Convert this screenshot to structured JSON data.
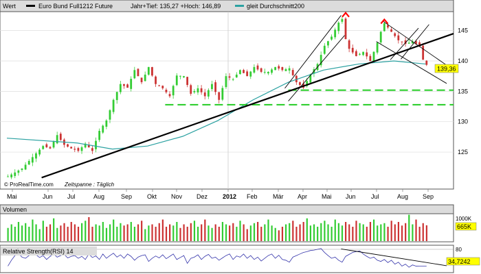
{
  "chart_data": [
    {
      "type": "candlestick",
      "panel_label": "Wert",
      "title": "Euro Bund Full1212 Future",
      "range_text": "Jahr+Tief: 135,27 +Hoch: 146,89",
      "legend_ma": "gleit Durchschnitt200",
      "watermark": "© ProRealTime.com",
      "period_text": "Zeitspanne : Täglich",
      "months": [
        "Mai",
        "Jun",
        "Jul",
        "Aug",
        "Sep",
        "Okt",
        "Nov",
        "Dez",
        "2012",
        "Feb",
        "Mär",
        "Apr",
        "Mai",
        "Jun",
        "Jul",
        "Aug",
        "Sep"
      ],
      "y_ticks": [
        125,
        130,
        135,
        140,
        145
      ],
      "ylim": [
        120.5,
        148
      ],
      "last_price": "139,36",
      "colors": {
        "up": "#33cc33",
        "down": "#cc3333",
        "ma": "#2aa1a1",
        "trend": "#000000",
        "support": "#22cc22",
        "marker": "#ff0000",
        "last_price_bg": "#ffff00"
      },
      "price_path": [
        [
          0,
          121
        ],
        [
          4,
          122.3
        ],
        [
          8,
          124.8
        ],
        [
          10,
          126
        ],
        [
          12,
          125.6
        ],
        [
          14,
          127.8
        ],
        [
          16,
          126.2
        ],
        [
          18,
          125.6
        ],
        [
          20,
          125.2
        ],
        [
          22,
          126.4
        ],
        [
          24,
          125.2
        ],
        [
          26,
          128.5
        ],
        [
          28,
          130.2
        ],
        [
          30,
          133.6
        ],
        [
          32,
          136.2
        ],
        [
          34,
          135.6
        ],
        [
          36,
          138.5
        ],
        [
          38,
          136.5
        ],
        [
          40,
          139
        ],
        [
          42,
          136.2
        ],
        [
          44,
          135.5
        ],
        [
          46,
          134.2
        ],
        [
          48,
          137.6
        ],
        [
          50,
          137.5
        ],
        [
          52,
          134.6
        ],
        [
          54,
          135.5
        ],
        [
          56,
          134.2
        ],
        [
          58,
          136.2
        ],
        [
          60,
          133.6
        ],
        [
          62,
          137.5
        ],
        [
          64,
          137
        ],
        [
          66,
          138.5
        ],
        [
          68,
          137.5
        ],
        [
          70,
          139
        ],
        [
          72,
          138.2
        ],
        [
          74,
          138.2
        ],
        [
          76,
          139
        ],
        [
          78,
          138.5
        ],
        [
          80,
          138.8
        ],
        [
          82,
          136.5
        ],
        [
          84,
          135.6
        ],
        [
          86,
          137.8
        ],
        [
          88,
          139.5
        ],
        [
          90,
          142.5
        ],
        [
          92,
          144
        ],
        [
          94,
          146.3
        ],
        [
          95,
          146.9
        ],
        [
          96,
          143.6
        ],
        [
          97,
          142
        ],
        [
          99,
          140.8
        ],
        [
          101,
          141.5
        ],
        [
          103,
          140
        ],
        [
          105,
          143
        ],
        [
          106,
          144.8
        ],
        [
          107,
          146.2
        ],
        [
          109,
          144.8
        ],
        [
          111,
          143.4
        ],
        [
          113,
          142.8
        ],
        [
          115,
          143.2
        ],
        [
          117,
          142.4
        ],
        [
          118,
          140.2
        ],
        [
          119,
          139.36
        ]
      ],
      "ma_points": [
        [
          0,
          127.3
        ],
        [
          20,
          126.5
        ],
        [
          30,
          125.5
        ],
        [
          40,
          126
        ],
        [
          50,
          127.6
        ],
        [
          60,
          130.2
        ],
        [
          70,
          133.6
        ],
        [
          80,
          136.5
        ],
        [
          90,
          138.5
        ],
        [
          100,
          139.5
        ],
        [
          110,
          140
        ],
        [
          119,
          139.5
        ]
      ],
      "trend_line": [
        [
          5,
          120.8
        ],
        [
          125,
          144.5
        ]
      ],
      "support_lines": [
        {
          "y": 132.8,
          "from": 45,
          "to": 125
        },
        {
          "y": 135.2,
          "from": 80,
          "to": 125
        }
      ],
      "channel_lines": [
        [
          [
            79,
            135.5
          ],
          [
            95,
            147.5
          ]
        ],
        [
          [
            80,
            133.4
          ],
          [
            96,
            144.2
          ]
        ],
        [
          [
            105,
            143.2
          ],
          [
            125,
            136.3
          ]
        ],
        [
          [
            107,
            146.5
          ],
          [
            125,
            139.3
          ]
        ],
        [
          [
            109,
            140.2
          ],
          [
            117,
            145.4
          ]
        ],
        [
          [
            112,
            140.3
          ],
          [
            120,
            146
          ]
        ]
      ],
      "markers": [
        [
          96,
          147.7
        ],
        [
          107,
          146.6
        ]
      ]
    },
    {
      "type": "bar",
      "panel_label": "Volumen",
      "y_tick_label": "1000K",
      "last_value": "665K",
      "values": [
        0.55,
        0.7,
        0.6,
        0.8,
        0.65,
        0.75,
        0.6,
        0.9,
        0.7,
        0.5,
        0.85,
        0.6,
        0.7,
        0.95,
        0.55,
        0.65,
        0.75,
        0.6,
        0.8,
        0.7,
        0.6,
        0.75,
        0.85,
        1.0,
        0.6,
        0.7,
        0.65,
        0.8,
        0.55,
        0.7,
        0.9,
        0.6,
        0.75,
        0.65,
        0.7,
        0.8,
        0.6,
        0.7,
        0.85,
        0.5,
        0.65,
        0.7,
        0.6,
        0.75,
        0.9,
        0.6,
        0.7,
        0.65,
        0.8,
        0.55,
        0.7,
        0.6,
        0.75,
        0.85,
        0.6,
        0.7,
        0.9,
        0.65,
        0.55,
        0.7,
        0.6,
        0.8,
        0.7,
        0.65,
        0.75,
        0.6,
        0.85,
        0.7,
        0.5,
        0.65,
        0.75,
        0.8,
        0.6,
        0.7,
        0.9,
        0.65,
        0.55,
        0.45,
        0.6,
        0.7,
        0.75,
        0.85,
        0.6,
        0.7,
        0.8,
        0.95,
        0.65,
        0.7,
        0.6,
        0.75,
        0.85,
        0.7,
        0.6,
        0.9,
        0.75,
        0.65,
        0.8,
        0.7,
        0.6,
        0.85,
        0.75,
        0.7,
        0.6,
        0.8,
        0.9,
        0.65,
        0.7,
        0.75,
        0.6,
        0.85,
        0.7,
        0.8,
        0.65,
        0.75,
        1.1,
        0.7,
        0.9,
        0.6,
        0.75,
        0.66
      ]
    },
    {
      "type": "line",
      "panel_label": "Relative Strength(RSI) 14",
      "y_tick_label": "80",
      "last_value": "34,7242",
      "ylim": [
        20,
        85
      ],
      "line_color": "#3333aa",
      "values": [
        35,
        50,
        62,
        68,
        58,
        55,
        62,
        70,
        64,
        57,
        62,
        52,
        60,
        66,
        58,
        62,
        65,
        56,
        60,
        62,
        55,
        60,
        52,
        66,
        57,
        61,
        52,
        66,
        55,
        62,
        68,
        58,
        64,
        55,
        66,
        60,
        50,
        58,
        62,
        64,
        47,
        55,
        61,
        56,
        64,
        54,
        60,
        66,
        52,
        57,
        62,
        42,
        55,
        58,
        64,
        52,
        60,
        65,
        55,
        58,
        50,
        56,
        62,
        66,
        52,
        61,
        58,
        66,
        55,
        62,
        52,
        58,
        48,
        55,
        62,
        66,
        55,
        63,
        52,
        50,
        45,
        58,
        62,
        66,
        70,
        72,
        75,
        76,
        78,
        80,
        70,
        62,
        55,
        58,
        50,
        45,
        60,
        65,
        70,
        72,
        74,
        66,
        60,
        55,
        58,
        50,
        47,
        52,
        44,
        50,
        40,
        45,
        35,
        40,
        32,
        38,
        35,
        34.7,
        34.7,
        34.7
      ],
      "descending_line": [
        [
          95,
          79
        ],
        [
          125,
          36
        ]
      ]
    }
  ]
}
